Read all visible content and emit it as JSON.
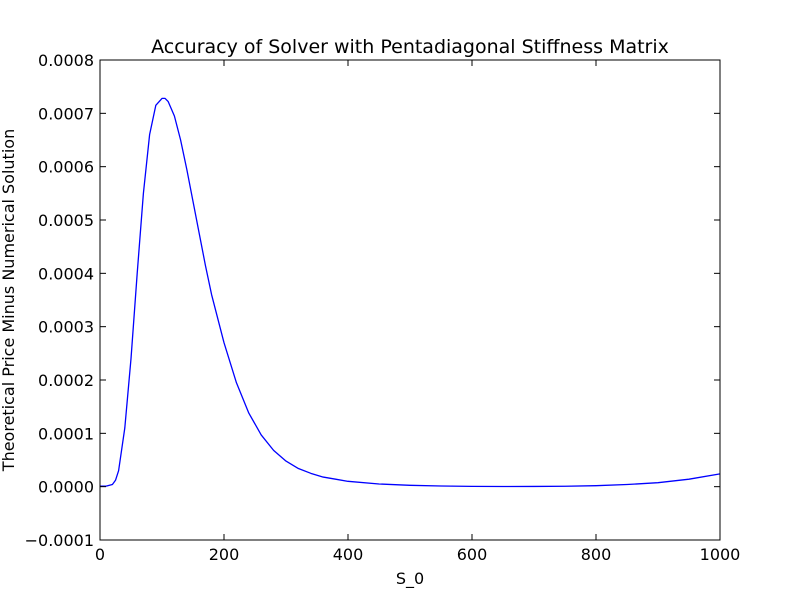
{
  "chart_data": {
    "type": "line",
    "title": "Accuracy of Solver with Pentadiagonal Stiffness Matrix",
    "xlabel": "S_0",
    "ylabel": "Theoretical Price Minus Numerical Solution",
    "xlim": [
      0,
      1000
    ],
    "ylim": [
      -0.0001,
      0.0008
    ],
    "xticks": [
      0,
      200,
      400,
      600,
      800,
      1000
    ],
    "xtick_labels": [
      "0",
      "200",
      "400",
      "600",
      "800",
      "1000"
    ],
    "yticks": [
      -0.0001,
      0.0,
      0.0001,
      0.0002,
      0.0003,
      0.0004,
      0.0005,
      0.0006,
      0.0007,
      0.0008
    ],
    "ytick_labels": [
      "−0.0001",
      "0.0000",
      "0.0001",
      "0.0002",
      "0.0003",
      "0.0004",
      "0.0005",
      "0.0006",
      "0.0007",
      "0.0008"
    ],
    "grid": false,
    "series": [
      {
        "color": "#0000ff",
        "x": [
          0,
          10,
          20,
          25,
          30,
          40,
          50,
          60,
          70,
          80,
          90,
          100,
          105,
          110,
          120,
          130,
          140,
          150,
          160,
          170,
          180,
          200,
          220,
          240,
          260,
          280,
          300,
          320,
          340,
          360,
          380,
          400,
          450,
          500,
          550,
          600,
          650,
          700,
          750,
          800,
          850,
          900,
          950,
          1000
        ],
        "y": [
          1e-06,
          1e-06,
          4e-06,
          1.2e-05,
          3e-05,
          0.00011,
          0.00024,
          0.0004,
          0.00055,
          0.00066,
          0.000715,
          0.000728,
          0.000728,
          0.000722,
          0.000695,
          0.00065,
          0.000595,
          0.000535,
          0.000475,
          0.000415,
          0.00036,
          0.00027,
          0.000195,
          0.000138,
          9.7e-05,
          6.8e-05,
          4.8e-05,
          3.4e-05,
          2.5e-05,
          1.8e-05,
          1.4e-05,
          1e-05,
          5e-06,
          2.5e-06,
          1.2e-06,
          5e-07,
          3e-07,
          4e-07,
          8e-07,
          1.8e-06,
          4e-06,
          7.5e-06,
          1.4e-05,
          2.4e-05
        ]
      }
    ]
  }
}
